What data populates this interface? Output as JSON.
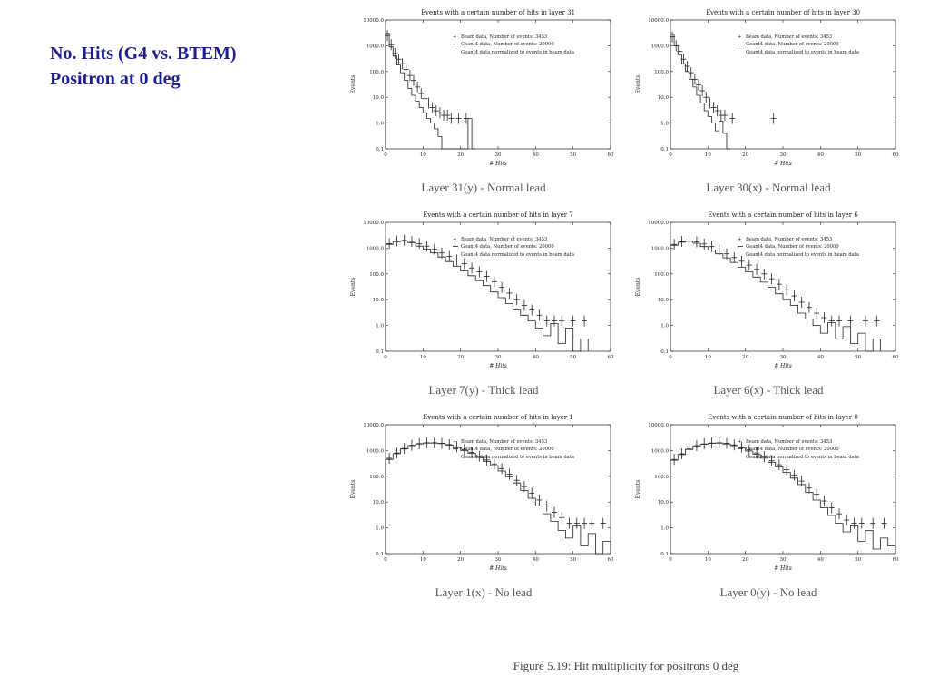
{
  "slide": {
    "title_line1": "No. Hits (G4 vs. BTEM)",
    "title_line2": "Positron at 0 deg",
    "figure_caption": "Figure 5.19: Hit multiplicity for positrons 0 deg"
  },
  "chart_data": {
    "shared": {
      "type": "histogram",
      "yscale": "log",
      "ylabel": "Events",
      "xlabel": "# Hits",
      "xmin": 0,
      "xmax": 60,
      "ymin": 0.1,
      "ymax": 10000,
      "yticks": [
        "0.1",
        "1.0",
        "10.0",
        "100.0",
        "1000.0",
        "10000.0"
      ],
      "xticks": [
        0,
        10,
        20,
        30,
        40,
        50,
        60
      ],
      "legend": {
        "beam": "Beam data, Number of events: 3453",
        "geant4": "Geant4 data, Number of events: 20000",
        "note": "Geant4 data normalized to events in beam data"
      },
      "series_styles": {
        "beam": "plus-markers-with-error-bars",
        "geant4": "step-histogram-line"
      }
    },
    "charts": [
      {
        "title": "Events with a certain number of hits in layer 31",
        "caption": "Layer 31(y) - Normal lead",
        "bin_width": 1,
        "beam": [
          [
            0.5,
            2500
          ],
          [
            1.5,
            1100
          ],
          [
            2.5,
            500
          ],
          [
            3.5,
            300
          ],
          [
            4.5,
            200
          ],
          [
            5.5,
            120
          ],
          [
            6.5,
            70
          ],
          [
            7.5,
            45
          ],
          [
            8.5,
            25
          ],
          [
            9.5,
            14
          ],
          [
            10.5,
            9
          ],
          [
            11.5,
            6
          ],
          [
            12.5,
            4
          ],
          [
            13.5,
            3
          ],
          [
            14.5,
            2.5
          ],
          [
            15.5,
            2
          ],
          [
            16.5,
            2
          ],
          [
            17.5,
            1.5
          ],
          [
            19.5,
            1.5
          ],
          [
            21.5,
            1.5
          ]
        ],
        "geant4": [
          [
            0,
            3000
          ],
          [
            1,
            900
          ],
          [
            2,
            400
          ],
          [
            3,
            180
          ],
          [
            4,
            90
          ],
          [
            5,
            45
          ],
          [
            6,
            22
          ],
          [
            7,
            12
          ],
          [
            8,
            7
          ],
          [
            9,
            4
          ],
          [
            10,
            2.5
          ],
          [
            11,
            1.5
          ],
          [
            12,
            1
          ],
          [
            13,
            0.6
          ],
          [
            14,
            0.3
          ],
          [
            15,
            0.1
          ],
          [
            16,
            0.1
          ],
          [
            17,
            0.1
          ],
          [
            18,
            0.1
          ],
          [
            19,
            0.1
          ],
          [
            20,
            0.1
          ],
          [
            21,
            0.1
          ],
          [
            22,
            1.5
          ],
          [
            23,
            0.1
          ]
        ]
      },
      {
        "title": "Events with a certain number of hits in layer 30",
        "caption": "Layer 30(x) - Normal lead",
        "bin_width": 1,
        "beam": [
          [
            0.5,
            2200
          ],
          [
            1.5,
            1000
          ],
          [
            2.5,
            600
          ],
          [
            3.5,
            300
          ],
          [
            4.5,
            160
          ],
          [
            5.5,
            90
          ],
          [
            6.5,
            50
          ],
          [
            7.5,
            30
          ],
          [
            8.5,
            18
          ],
          [
            9.5,
            10
          ],
          [
            10.5,
            6
          ],
          [
            11.5,
            4
          ],
          [
            12.5,
            3
          ],
          [
            13.5,
            2
          ],
          [
            14.5,
            2
          ],
          [
            16.5,
            1.5
          ],
          [
            27.5,
            1.5
          ]
        ],
        "geant4": [
          [
            0,
            2800
          ],
          [
            1,
            1000
          ],
          [
            2,
            450
          ],
          [
            3,
            200
          ],
          [
            4,
            100
          ],
          [
            5,
            50
          ],
          [
            6,
            25
          ],
          [
            7,
            12
          ],
          [
            8,
            6
          ],
          [
            9,
            3
          ],
          [
            10,
            1.8
          ],
          [
            11,
            1
          ],
          [
            12,
            0.5
          ],
          [
            13,
            1.2
          ],
          [
            14,
            0.4
          ],
          [
            15,
            0.1
          ]
        ]
      },
      {
        "title": "Events with a certain number of hits in layer 7",
        "caption": "Layer 7(y) - Thick lead",
        "bin_width": 2,
        "beam": [
          [
            1,
            1500
          ],
          [
            3,
            1900
          ],
          [
            5,
            2000
          ],
          [
            7,
            1800
          ],
          [
            9,
            1500
          ],
          [
            11,
            1200
          ],
          [
            13,
            900
          ],
          [
            15,
            650
          ],
          [
            17,
            480
          ],
          [
            19,
            350
          ],
          [
            21,
            250
          ],
          [
            23,
            170
          ],
          [
            25,
            120
          ],
          [
            27,
            80
          ],
          [
            29,
            50
          ],
          [
            31,
            30
          ],
          [
            33,
            18
          ],
          [
            35,
            10
          ],
          [
            37,
            6
          ],
          [
            39,
            4
          ],
          [
            41,
            2.5
          ],
          [
            43,
            1.5
          ],
          [
            45,
            1.5
          ],
          [
            47,
            1.5
          ],
          [
            50,
            1.5
          ],
          [
            53,
            1.5
          ]
        ],
        "geant4": [
          [
            0,
            1400
          ],
          [
            2,
            1800
          ],
          [
            4,
            1900
          ],
          [
            6,
            1600
          ],
          [
            8,
            1200
          ],
          [
            10,
            900
          ],
          [
            12,
            650
          ],
          [
            14,
            450
          ],
          [
            16,
            300
          ],
          [
            18,
            200
          ],
          [
            20,
            130
          ],
          [
            22,
            85
          ],
          [
            24,
            55
          ],
          [
            26,
            35
          ],
          [
            28,
            20
          ],
          [
            30,
            12
          ],
          [
            32,
            7
          ],
          [
            34,
            4
          ],
          [
            36,
            2.5
          ],
          [
            38,
            1.5
          ],
          [
            40,
            0.8
          ],
          [
            42,
            0.4
          ],
          [
            44,
            1.2
          ],
          [
            46,
            0.2
          ],
          [
            48,
            0.8
          ],
          [
            50,
            0.1
          ],
          [
            52,
            0.3
          ]
        ]
      },
      {
        "title": "Events with a certain number of hits in layer 6",
        "caption": "Layer 6(x) - Thick lead",
        "bin_width": 2,
        "beam": [
          [
            1,
            1400
          ],
          [
            3,
            1800
          ],
          [
            5,
            1900
          ],
          [
            7,
            1750
          ],
          [
            9,
            1450
          ],
          [
            11,
            1150
          ],
          [
            13,
            850
          ],
          [
            15,
            600
          ],
          [
            17,
            430
          ],
          [
            19,
            310
          ],
          [
            21,
            220
          ],
          [
            23,
            150
          ],
          [
            25,
            100
          ],
          [
            27,
            65
          ],
          [
            29,
            40
          ],
          [
            31,
            24
          ],
          [
            33,
            14
          ],
          [
            35,
            8
          ],
          [
            37,
            5
          ],
          [
            39,
            3
          ],
          [
            41,
            2
          ],
          [
            43,
            1.5
          ],
          [
            45,
            1.5
          ],
          [
            48,
            1.5
          ],
          [
            52,
            1.5
          ],
          [
            55,
            1.5
          ]
        ],
        "geant4": [
          [
            0,
            1300
          ],
          [
            2,
            1700
          ],
          [
            4,
            1850
          ],
          [
            6,
            1550
          ],
          [
            8,
            1150
          ],
          [
            10,
            850
          ],
          [
            12,
            600
          ],
          [
            14,
            420
          ],
          [
            16,
            280
          ],
          [
            18,
            180
          ],
          [
            20,
            120
          ],
          [
            22,
            75
          ],
          [
            24,
            48
          ],
          [
            26,
            30
          ],
          [
            28,
            17
          ],
          [
            30,
            10
          ],
          [
            32,
            6
          ],
          [
            34,
            3
          ],
          [
            36,
            1.8
          ],
          [
            38,
            1
          ],
          [
            40,
            0.5
          ],
          [
            42,
            1.3
          ],
          [
            44,
            0.3
          ],
          [
            46,
            0.9
          ],
          [
            48,
            0.2
          ],
          [
            50,
            0.5
          ],
          [
            52,
            0.1
          ],
          [
            54,
            0.3
          ]
        ]
      },
      {
        "title": "Events with a certain number of hits in layer 1",
        "caption": "Layer 1(x) - No lead",
        "bin_width": 2,
        "beam": [
          [
            1,
            500
          ],
          [
            3,
            800
          ],
          [
            5,
            1200
          ],
          [
            7,
            1600
          ],
          [
            9,
            1850
          ],
          [
            11,
            2000
          ],
          [
            13,
            2000
          ],
          [
            15,
            1900
          ],
          [
            17,
            1700
          ],
          [
            19,
            1400
          ],
          [
            21,
            1100
          ],
          [
            23,
            850
          ],
          [
            25,
            600
          ],
          [
            27,
            430
          ],
          [
            29,
            300
          ],
          [
            31,
            200
          ],
          [
            33,
            120
          ],
          [
            35,
            70
          ],
          [
            37,
            40
          ],
          [
            39,
            22
          ],
          [
            41,
            12
          ],
          [
            43,
            7
          ],
          [
            45,
            4
          ],
          [
            47,
            2.5
          ],
          [
            49,
            1.5
          ],
          [
            51,
            1.5
          ],
          [
            53,
            1.5
          ],
          [
            55,
            1.5
          ],
          [
            58,
            1.5
          ]
        ],
        "geant4": [
          [
            0,
            450
          ],
          [
            2,
            750
          ],
          [
            4,
            1150
          ],
          [
            6,
            1550
          ],
          [
            8,
            1800
          ],
          [
            10,
            1950
          ],
          [
            12,
            1950
          ],
          [
            14,
            1850
          ],
          [
            16,
            1600
          ],
          [
            18,
            1300
          ],
          [
            20,
            1000
          ],
          [
            22,
            780
          ],
          [
            24,
            540
          ],
          [
            26,
            380
          ],
          [
            28,
            260
          ],
          [
            30,
            160
          ],
          [
            32,
            95
          ],
          [
            34,
            55
          ],
          [
            36,
            28
          ],
          [
            38,
            14
          ],
          [
            40,
            7
          ],
          [
            42,
            3.5
          ],
          [
            44,
            1.8
          ],
          [
            46,
            0.8
          ],
          [
            48,
            0.4
          ],
          [
            50,
            1.2
          ],
          [
            52,
            0.2
          ],
          [
            54,
            0.6
          ],
          [
            56,
            0.1
          ],
          [
            58,
            0.3
          ]
        ]
      },
      {
        "title": "Events with a certain number of hits in layer 0",
        "caption": "Layer 0(y) - No lead",
        "bin_width": 2,
        "beam": [
          [
            1,
            450
          ],
          [
            3,
            750
          ],
          [
            5,
            1150
          ],
          [
            7,
            1550
          ],
          [
            9,
            1800
          ],
          [
            11,
            1950
          ],
          [
            13,
            2000
          ],
          [
            15,
            1900
          ],
          [
            17,
            1650
          ],
          [
            19,
            1350
          ],
          [
            21,
            1050
          ],
          [
            23,
            800
          ],
          [
            25,
            580
          ],
          [
            27,
            400
          ],
          [
            29,
            280
          ],
          [
            31,
            180
          ],
          [
            33,
            110
          ],
          [
            35,
            65
          ],
          [
            37,
            35
          ],
          [
            39,
            20
          ],
          [
            41,
            11
          ],
          [
            43,
            6
          ],
          [
            45,
            3.5
          ],
          [
            47,
            2
          ],
          [
            49,
            1.5
          ],
          [
            51,
            1.5
          ],
          [
            54,
            1.5
          ],
          [
            57,
            1.5
          ]
        ],
        "geant4": [
          [
            0,
            420
          ],
          [
            2,
            700
          ],
          [
            4,
            1100
          ],
          [
            6,
            1500
          ],
          [
            8,
            1750
          ],
          [
            10,
            1900
          ],
          [
            12,
            1950
          ],
          [
            14,
            1800
          ],
          [
            16,
            1550
          ],
          [
            18,
            1250
          ],
          [
            20,
            950
          ],
          [
            22,
            720
          ],
          [
            24,
            500
          ],
          [
            26,
            350
          ],
          [
            28,
            230
          ],
          [
            30,
            140
          ],
          [
            32,
            85
          ],
          [
            34,
            48
          ],
          [
            36,
            24
          ],
          [
            38,
            12
          ],
          [
            40,
            6
          ],
          [
            42,
            3
          ],
          [
            44,
            1.5
          ],
          [
            46,
            0.7
          ],
          [
            48,
            1.2
          ],
          [
            50,
            0.3
          ],
          [
            52,
            0.8
          ],
          [
            54,
            0.15
          ],
          [
            56,
            0.4
          ],
          [
            58,
            0.2
          ]
        ]
      }
    ]
  }
}
